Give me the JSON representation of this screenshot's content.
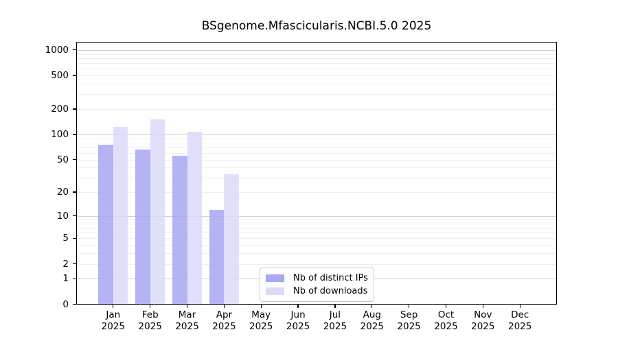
{
  "chart_data": {
    "type": "bar",
    "title": "BSgenome.Mfascicularis.NCBI.5.0 2025",
    "categories": [
      "Jan",
      "Feb",
      "Mar",
      "Apr",
      "May",
      "Jun",
      "Jul",
      "Aug",
      "Sep",
      "Oct",
      "Nov",
      "Dec"
    ],
    "x_tick_year": "2025",
    "series": [
      {
        "name": "Nb of distinct IPs",
        "color": "#a7a7f2",
        "values": [
          75,
          66,
          56,
          12,
          null,
          null,
          null,
          null,
          null,
          null,
          null,
          null
        ]
      },
      {
        "name": "Nb of downloads",
        "color": "#dbdbf9",
        "values": [
          122,
          151,
          107,
          33,
          null,
          null,
          null,
          null,
          null,
          null,
          null,
          null
        ]
      }
    ],
    "xlabel": "",
    "ylabel": "",
    "y_scale": "log1p",
    "y_ticks": [
      0,
      1,
      2,
      5,
      10,
      20,
      50,
      100,
      200,
      500,
      1000
    ],
    "ylim": [
      0,
      1258
    ],
    "grid": true,
    "legend_position": "lower center"
  }
}
